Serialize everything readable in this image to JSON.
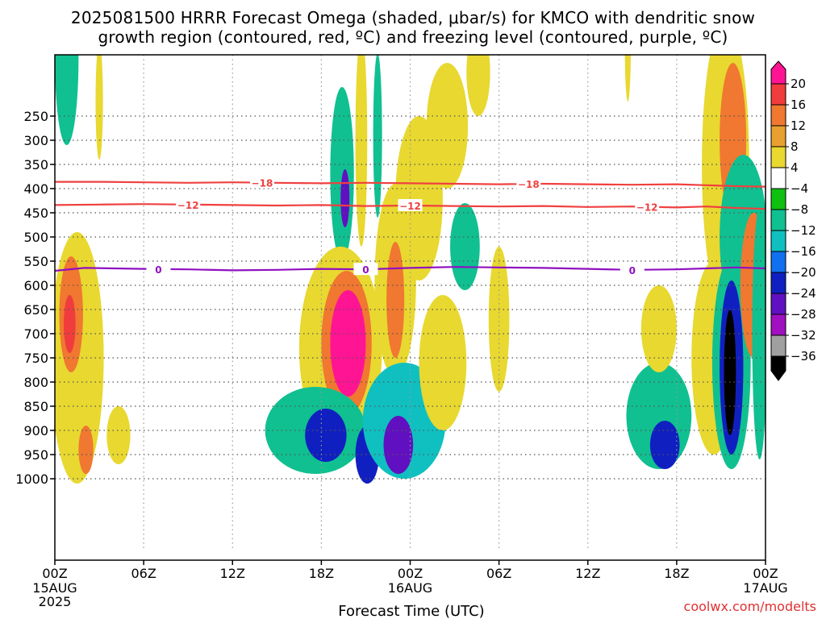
{
  "chart_data": {
    "type": "heatmap",
    "title_line1": "2025081500 HRRR Forecast Omega (shaded, μbar/s) for KMCO with dendritic snow",
    "title_line2": "growth region (contoured, red, ºC) and freezing level (contoured, purple, ºC)",
    "xlabel": "Forecast Time (UTC)",
    "credit": "coolwx.com/modelts",
    "x_hours": [
      0,
      48
    ],
    "x_ticks": [
      {
        "hour": 0,
        "label": "00Z",
        "date": "15AUG",
        "year": "2025"
      },
      {
        "hour": 6,
        "label": "06Z"
      },
      {
        "hour": 12,
        "label": "12Z"
      },
      {
        "hour": 18,
        "label": "18Z"
      },
      {
        "hour": 24,
        "label": "00Z",
        "date": "16AUG"
      },
      {
        "hour": 30,
        "label": "06Z"
      },
      {
        "hour": 36,
        "label": "12Z"
      },
      {
        "hour": 42,
        "label": "18Z"
      },
      {
        "hour": 48,
        "label": "00Z",
        "date": "17AUG"
      }
    ],
    "y_axis": "pressure (hPa)",
    "y_ticks": [
      250,
      300,
      350,
      400,
      450,
      500,
      550,
      600,
      650,
      700,
      750,
      800,
      850,
      900,
      950,
      1000
    ],
    "colorbar": {
      "levels": [
        "20",
        "16",
        "12",
        "8",
        "4",
        "−4",
        "−8",
        "−12",
        "−16",
        "−20",
        "−24",
        "−28",
        "−32",
        "−36"
      ],
      "colors": [
        "#ff1493",
        "#f03c3c",
        "#f07830",
        "#e8a030",
        "#e8d830",
        "#ffffff",
        "#10c010",
        "#10c090",
        "#10c0c0",
        "#1070f0",
        "#1020c0",
        "#6010c0",
        "#a010c0",
        "#a0a0a0",
        "#000000"
      ]
    },
    "contours": [
      {
        "name": "-18",
        "color": "#f04040",
        "label": "−18",
        "points": [
          [
            0,
            386
          ],
          [
            3,
            386
          ],
          [
            6,
            387
          ],
          [
            9,
            388
          ],
          [
            12,
            387
          ],
          [
            15,
            388
          ],
          [
            18,
            389
          ],
          [
            21,
            388
          ],
          [
            24,
            389
          ],
          [
            27,
            390
          ],
          [
            30,
            391
          ],
          [
            33,
            390
          ],
          [
            36,
            391
          ],
          [
            39,
            392
          ],
          [
            42,
            391
          ],
          [
            44,
            393
          ],
          [
            46,
            395
          ],
          [
            48,
            396
          ]
        ],
        "label_hours": [
          14,
          32
        ]
      },
      {
        "name": "-12",
        "color": "#f04040",
        "label": "−12",
        "points": [
          [
            0,
            434
          ],
          [
            3,
            433
          ],
          [
            6,
            432
          ],
          [
            9,
            433
          ],
          [
            12,
            434
          ],
          [
            15,
            435
          ],
          [
            18,
            434
          ],
          [
            21,
            436
          ],
          [
            24,
            435
          ],
          [
            27,
            436
          ],
          [
            30,
            437
          ],
          [
            33,
            436
          ],
          [
            36,
            438
          ],
          [
            39,
            437
          ],
          [
            42,
            439
          ],
          [
            44,
            437
          ],
          [
            46,
            440
          ],
          [
            48,
            442
          ]
        ],
        "label_hours": [
          9,
          24,
          40
        ]
      },
      {
        "name": "0",
        "color": "#9010c0",
        "label": "0",
        "points": [
          [
            0,
            570
          ],
          [
            2,
            564
          ],
          [
            4,
            565
          ],
          [
            6,
            566
          ],
          [
            9,
            567
          ],
          [
            12,
            569
          ],
          [
            15,
            568
          ],
          [
            18,
            566
          ],
          [
            21,
            567
          ],
          [
            24,
            564
          ],
          [
            27,
            562
          ],
          [
            30,
            563
          ],
          [
            33,
            564
          ],
          [
            36,
            566
          ],
          [
            39,
            568
          ],
          [
            42,
            567
          ],
          [
            44,
            565
          ],
          [
            46,
            563
          ],
          [
            48,
            565
          ]
        ],
        "label_hours": [
          7,
          21,
          39
        ]
      }
    ],
    "omega_blobs": [
      {
        "hour": 0.8,
        "p": 130,
        "rh": 0.8,
        "rp": 180,
        "value": -8
      },
      {
        "hour": 3.0,
        "p": 220,
        "rh": 0.25,
        "rp": 120,
        "value": 4
      },
      {
        "hour": 1.5,
        "p": 750,
        "rh": 1.8,
        "rp": 260,
        "value": 6
      },
      {
        "hour": 1.1,
        "p": 660,
        "rh": 0.8,
        "rp": 120,
        "value": 14
      },
      {
        "hour": 1.0,
        "p": 680,
        "rh": 0.4,
        "rp": 60,
        "value": 18
      },
      {
        "hour": 2.1,
        "p": 940,
        "rh": 0.5,
        "rp": 50,
        "value": 12
      },
      {
        "hour": 4.3,
        "p": 910,
        "rh": 0.8,
        "rp": 60,
        "value": 5
      },
      {
        "hour": 19.4,
        "p": 370,
        "rh": 0.8,
        "rp": 180,
        "value": -10
      },
      {
        "hour": 19.6,
        "p": 420,
        "rh": 0.3,
        "rp": 60,
        "value": -24
      },
      {
        "hour": 19.3,
        "p": 730,
        "rh": 2.8,
        "rp": 210,
        "value": 6
      },
      {
        "hour": 19.7,
        "p": 720,
        "rh": 1.7,
        "rp": 150,
        "value": 14
      },
      {
        "hour": 19.8,
        "p": 720,
        "rh": 1.2,
        "rp": 110,
        "value": 22
      },
      {
        "hour": 17.6,
        "p": 900,
        "rh": 3.4,
        "rp": 90,
        "value": -8
      },
      {
        "hour": 18.3,
        "p": 910,
        "rh": 1.4,
        "rp": 55,
        "value": -22
      },
      {
        "hour": 21.1,
        "p": 950,
        "rh": 0.8,
        "rp": 60,
        "value": -20
      },
      {
        "hour": 20.7,
        "p": 300,
        "rh": 0.4,
        "rp": 220,
        "value": 5
      },
      {
        "hour": 21.8,
        "p": 290,
        "rh": 0.3,
        "rp": 170,
        "value": -8
      },
      {
        "hour": 23.0,
        "p": 590,
        "rh": 1.4,
        "rp": 200,
        "value": 6
      },
      {
        "hour": 23.0,
        "p": 630,
        "rh": 0.6,
        "rp": 120,
        "value": 12
      },
      {
        "hour": 24.6,
        "p": 420,
        "rh": 1.6,
        "rp": 170,
        "value": 5
      },
      {
        "hour": 26.5,
        "p": 270,
        "rh": 1.4,
        "rp": 130,
        "value": 5
      },
      {
        "hour": 28.6,
        "p": 160,
        "rh": 0.8,
        "rp": 90,
        "value": 5
      },
      {
        "hour": 23.6,
        "p": 880,
        "rh": 2.8,
        "rp": 120,
        "value": -12
      },
      {
        "hour": 23.2,
        "p": 930,
        "rh": 1.0,
        "rp": 60,
        "value": -26
      },
      {
        "hour": 26.2,
        "p": 760,
        "rh": 1.6,
        "rp": 140,
        "value": 5
      },
      {
        "hour": 27.7,
        "p": 520,
        "rh": 1.0,
        "rp": 90,
        "value": -8
      },
      {
        "hour": 30.0,
        "p": 670,
        "rh": 0.7,
        "rp": 150,
        "value": 5
      },
      {
        "hour": 38.7,
        "p": 110,
        "rh": 0.2,
        "rp": 110,
        "value": 5
      },
      {
        "hour": 40.8,
        "p": 870,
        "rh": 2.2,
        "rp": 110,
        "value": -8
      },
      {
        "hour": 41.2,
        "p": 930,
        "rh": 1.0,
        "rp": 50,
        "value": -22
      },
      {
        "hour": 40.8,
        "p": 690,
        "rh": 1.2,
        "rp": 90,
        "value": 6
      },
      {
        "hour": 44.5,
        "p": 750,
        "rh": 1.5,
        "rp": 200,
        "value": 6
      },
      {
        "hour": 45.3,
        "p": 350,
        "rh": 1.6,
        "rp": 300,
        "value": 6
      },
      {
        "hour": 45.8,
        "p": 300,
        "rh": 0.9,
        "rp": 160,
        "value": 12
      },
      {
        "hour": 46.5,
        "p": 500,
        "rh": 1.6,
        "rp": 170,
        "value": -8
      },
      {
        "hour": 45.7,
        "p": 760,
        "rh": 1.3,
        "rp": 220,
        "value": -10
      },
      {
        "hour": 45.7,
        "p": 770,
        "rh": 0.8,
        "rp": 180,
        "value": -20
      },
      {
        "hour": 45.6,
        "p": 780,
        "rh": 0.4,
        "rp": 130,
        "value": -36
      },
      {
        "hour": 47.2,
        "p": 600,
        "rh": 0.9,
        "rp": 150,
        "value": 14
      },
      {
        "hour": 47.6,
        "p": 700,
        "rh": 0.5,
        "rp": 260,
        "value": -8
      }
    ]
  }
}
